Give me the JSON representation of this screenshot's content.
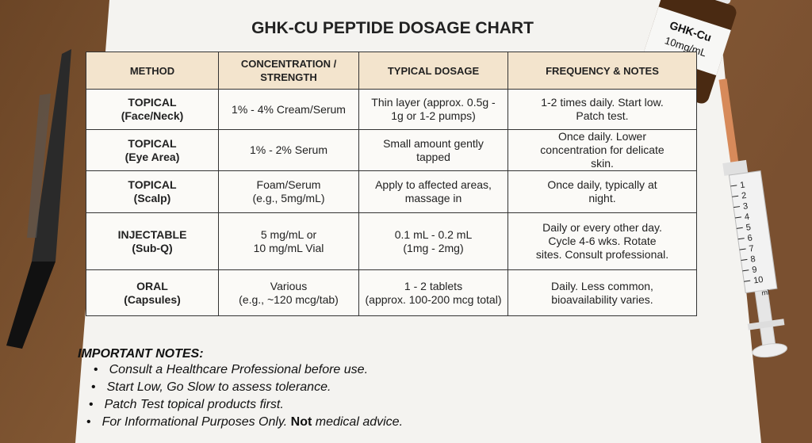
{
  "title": "GHK-CU PEPTIDE DOSAGE CHART",
  "table": {
    "header": [
      [
        "METHOD"
      ],
      [
        "CONCENTRATION /",
        "STRENGTH"
      ],
      [
        "TYPICAL DOSAGE"
      ],
      [
        "FREQUENCY & NOTES"
      ]
    ],
    "rows": [
      [
        [
          "TOPICAL",
          "(Face/Neck)"
        ],
        [
          "1% - 4% Cream/Serum"
        ],
        [
          "Thin layer (approx. 0.5g -",
          "1g or 1-2 pumps)"
        ],
        [
          "1-2 times daily. Start low.",
          "Patch test."
        ]
      ],
      [
        [
          "TOPICAL",
          "(Eye Area)"
        ],
        [
          "1% - 2% Serum"
        ],
        [
          "Small amount gently",
          "tapped"
        ],
        [
          "Once daily. Lower",
          "concentration for delicate",
          "skin."
        ]
      ],
      [
        [
          "TOPICAL",
          "(Scalp)"
        ],
        [
          "Foam/Serum",
          "(e.g., 5mg/mL)"
        ],
        [
          "Apply to affected areas,",
          "massage in"
        ],
        [
          "Once daily, typically at",
          "night."
        ]
      ],
      [
        [
          "INJECTABLE",
          "(Sub-Q)"
        ],
        [
          "5 mg/mL or",
          "10 mg/mL Vial"
        ],
        [
          "0.1 mL - 0.2 mL",
          "(1mg - 2mg)"
        ],
        [
          "Daily or every other day.",
          "Cycle 4-6 wks. Rotate",
          "sites. Consult professional."
        ]
      ],
      [
        [
          "ORAL",
          "(Capsules)"
        ],
        [
          "Various",
          "(e.g., ~120 mcg/tab)"
        ],
        [
          "1 - 2 tablets",
          "(approx. 100-200 mcg total)"
        ],
        [
          "Daily. Less common,",
          "bioavailability varies."
        ]
      ]
    ]
  },
  "notes": {
    "heading": "IMPORTANT NOTES:",
    "items": [
      [
        "Consult a Healthcare Professional before use."
      ],
      [
        "Start Low, Go Slow to assess tolerance."
      ],
      [
        "Patch Test topical products first."
      ],
      [
        "For Informational Purposes Only. ",
        "Not",
        " medical advice."
      ]
    ]
  },
  "vial": {
    "label": [
      "GHK-Cu",
      "10mg/mL"
    ]
  },
  "syringe": {
    "marks": [
      "1",
      "2",
      "3",
      "4",
      "5",
      "6",
      "7",
      "8",
      "9",
      "10"
    ],
    "unit": "ml"
  }
}
